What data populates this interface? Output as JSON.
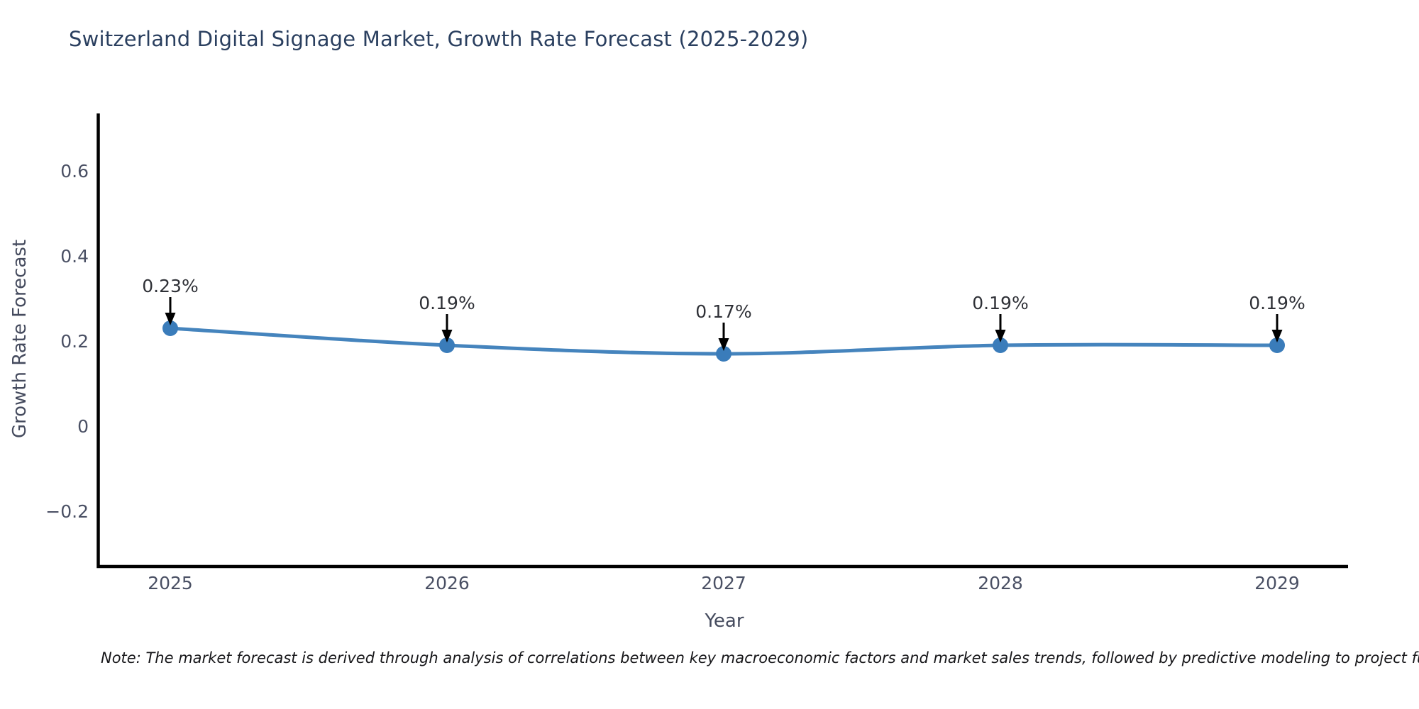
{
  "chart": {
    "title": "Switzerland Digital Signage Market, Growth Rate Forecast (2025-2029)",
    "x_axis_label": "Year",
    "y_axis_label": "Growth Rate Forecast",
    "note": "Note: The market forecast is derived through analysis of correlations between key macroeconomic factors and market sales trends, followed by predictive modeling to project future sales."
  },
  "chart_data": {
    "type": "line",
    "title": "Switzerland Digital Signage Market, Growth Rate Forecast (2025-2029)",
    "xlabel": "Year",
    "ylabel": "Growth Rate Forecast",
    "categories": [
      "2025",
      "2026",
      "2027",
      "2028",
      "2029"
    ],
    "series": [
      {
        "name": "Growth Rate Forecast",
        "values": [
          0.23,
          0.19,
          0.17,
          0.19,
          0.19
        ]
      }
    ],
    "point_labels": [
      "0.23%",
      "0.19%",
      "0.17%",
      "0.19%",
      "0.19%"
    ],
    "annotation_style": "down-arrow-to-point",
    "y_ticks": [
      0.6,
      0.4,
      0.2,
      0,
      -0.2
    ],
    "y_tick_labels": [
      "0.6",
      "0.4",
      "0.2",
      "0",
      "−0.2"
    ],
    "ylim": [
      -0.33,
      0.73
    ],
    "grid": false,
    "legend_position": "none",
    "colors": {
      "line": "#4584bd",
      "marker": "#3a7cba",
      "axis_spine": "#000000",
      "title_text": "#2a3f5f",
      "tick_text": "#4a5064",
      "axis_title_text": "#454b5e",
      "annotation_text": "#2f3137",
      "annotation_arrow": "#000000",
      "note_text": "#17171a",
      "background": "#ffffff"
    }
  }
}
